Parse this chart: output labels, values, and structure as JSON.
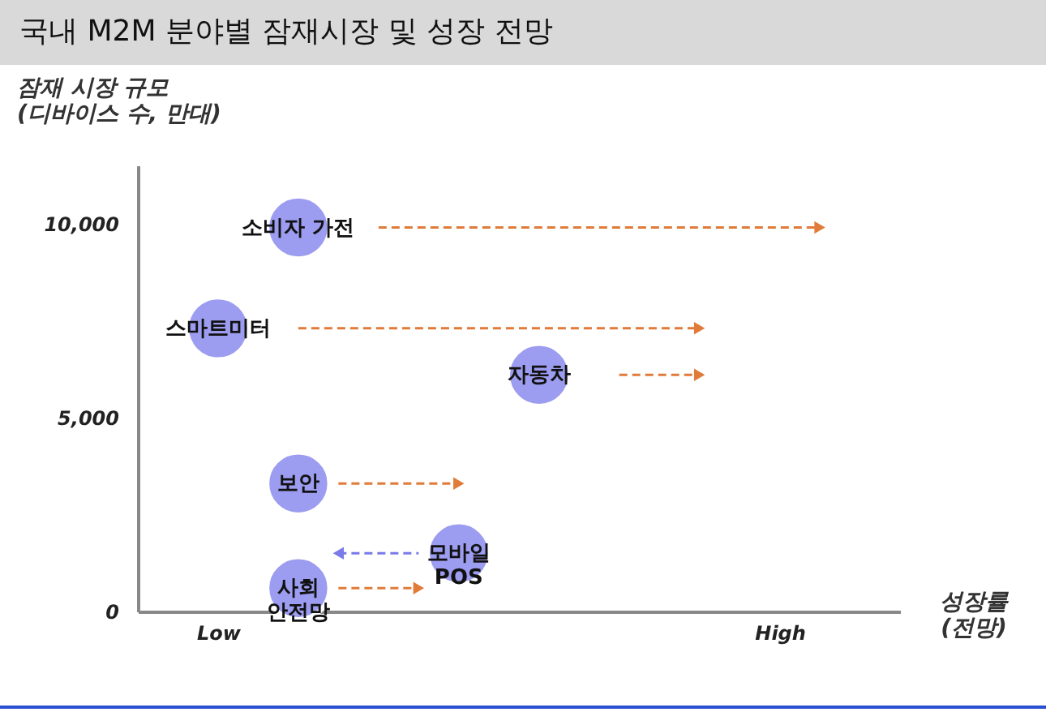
{
  "chart_data": {
    "type": "scatter",
    "title": "국내 M2M 분야별 잠재시장 및 성장 전망",
    "xlabel": "성장률\n(전망)",
    "ylabel": "잠재 시장 규모\n(디바이스 수, 만대)",
    "categories": [
      null,
      "Low",
      null,
      null,
      null,
      null,
      null,
      null,
      null,
      null,
      null,
      null,
      null,
      null,
      null,
      "High",
      null,
      null
    ],
    "ylim": [
      0,
      11500
    ],
    "yticks": [
      {
        "value": 0,
        "label": "0"
      },
      {
        "value": 5000,
        "label": "5,000"
      },
      {
        "value": 10000,
        "label": "10,000"
      }
    ],
    "grid": false,
    "series": [
      {
        "name": "소비자 가전",
        "type": "scatter",
        "color": "#9c9cf0",
        "values": [
          null,
          null,
          null,
          9900,
          null,
          null,
          null,
          null,
          null,
          null,
          null,
          null,
          null,
          null,
          null,
          null,
          null,
          null
        ]
      },
      {
        "name": "스마트미터",
        "type": "scatter",
        "color": "#9c9cf0",
        "values": [
          null,
          7300,
          null,
          null,
          null,
          null,
          null,
          null,
          null,
          null,
          null,
          null,
          null,
          null,
          null,
          null,
          null,
          null
        ]
      },
      {
        "name": "자동차",
        "type": "scatter",
        "color": "#9c9cf0",
        "values": [
          null,
          null,
          null,
          null,
          null,
          null,
          null,
          null,
          null,
          6100,
          null,
          null,
          null,
          null,
          null,
          null,
          null,
          null
        ]
      },
      {
        "name": "보안",
        "type": "scatter",
        "color": "#9c9cf0",
        "values": [
          null,
          null,
          null,
          3300,
          null,
          null,
          null,
          null,
          null,
          null,
          null,
          null,
          null,
          null,
          null,
          null,
          null,
          null
        ]
      },
      {
        "name": "모바일\nPOS",
        "type": "scatter",
        "color": "#9c9cf0",
        "values": [
          null,
          null,
          null,
          null,
          null,
          null,
          null,
          1500,
          null,
          null,
          null,
          null,
          null,
          null,
          null,
          null,
          null,
          null
        ]
      },
      {
        "name": "사회\n안전망",
        "type": "scatter",
        "color": "#9c9cf0",
        "values": [
          null,
          null,
          null,
          600,
          null,
          null,
          null,
          null,
          null,
          null,
          null,
          null,
          null,
          null,
          null,
          null,
          null,
          null
        ]
      },
      {
        "type": "line",
        "color": "#e07b39",
        "line_style": "dashed",
        "values": [
          null,
          null,
          null,
          null,
          null,
          9900,
          null,
          null,
          null,
          null,
          null,
          null,
          null,
          null,
          null,
          null,
          9900,
          null
        ]
      },
      {
        "type": "line",
        "color": "#e07b39",
        "line_style": "dashed",
        "values": [
          null,
          null,
          null,
          7300,
          null,
          null,
          null,
          null,
          null,
          null,
          null,
          null,
          null,
          7300,
          null,
          null,
          null,
          null
        ]
      },
      {
        "type": "line",
        "color": "#e07b39",
        "line_style": "dashed",
        "values": [
          null,
          null,
          null,
          null,
          null,
          null,
          null,
          null,
          null,
          null,
          null,
          6100,
          null,
          6100,
          null,
          null,
          null,
          null
        ]
      },
      {
        "type": "line",
        "color": "#e07b39",
        "line_style": "dashed",
        "values": [
          null,
          null,
          null,
          null,
          3300,
          null,
          null,
          3300,
          null,
          null,
          null,
          null,
          null,
          null,
          null,
          null,
          null,
          null
        ]
      },
      {
        "type": "line",
        "color": "#7a7ae8",
        "line_style": "dashed",
        "values": [
          null,
          null,
          null,
          null,
          1500,
          null,
          1500,
          null,
          null,
          null,
          null,
          null,
          null,
          null,
          null,
          null,
          null,
          null
        ]
      },
      {
        "type": "line",
        "color": "#e07b39",
        "line_style": "dashed",
        "values": [
          null,
          null,
          null,
          null,
          600,
          null,
          600,
          null,
          null,
          null,
          null,
          null,
          null,
          null,
          null,
          null,
          null,
          null
        ]
      }
    ]
  }
}
